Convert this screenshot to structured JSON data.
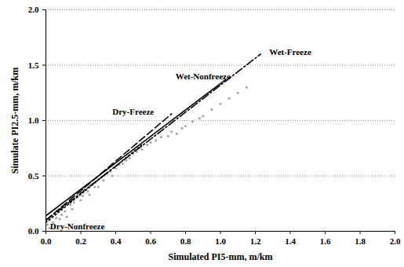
{
  "chart_data": {
    "type": "scatter",
    "x_label": "Simulated PI5-mm, m/km",
    "y_label": "Simulate PI2.5-mm, m/km",
    "xlim": [
      0,
      2
    ],
    "ylim": [
      0,
      2
    ],
    "xticks": [
      {
        "value": 0,
        "label": "0.0"
      },
      {
        "value": 0.2,
        "label": "0.2"
      },
      {
        "value": 0.4,
        "label": "0.4"
      },
      {
        "value": 0.6,
        "label": "0.6"
      },
      {
        "value": 0.8,
        "label": "0.8"
      },
      {
        "value": 1,
        "label": "1.0"
      },
      {
        "value": 1.2,
        "label": "1.2"
      },
      {
        "value": 1.4,
        "label": "1.4"
      },
      {
        "value": 1.6,
        "label": "1.6"
      },
      {
        "value": 1.8,
        "label": "1.8"
      },
      {
        "value": 2,
        "label": "2.0"
      }
    ],
    "yticks": [
      {
        "value": 0,
        "label": "0.0"
      },
      {
        "value": 0.5,
        "label": "0.5"
      },
      {
        "value": 1,
        "label": "1.0"
      },
      {
        "value": 1.5,
        "label": "1.5"
      },
      {
        "value": 2,
        "label": "2.0"
      }
    ],
    "grid": "y",
    "scatter": {
      "color": "#a8a8a8",
      "marker": "circle",
      "x": [
        0.01,
        0.02,
        0.03,
        0.04,
        0.05,
        0.06,
        0.08,
        0.09,
        0.1,
        0.11,
        0.12,
        0.14,
        0.15,
        0.16,
        0.18,
        0.2,
        0.21,
        0.22,
        0.24,
        0.25,
        0.27,
        0.28,
        0.3,
        0.32,
        0.33,
        0.35,
        0.37,
        0.38,
        0.4,
        0.42,
        0.44,
        0.46,
        0.48,
        0.5,
        0.52,
        0.55,
        0.58,
        0.6,
        0.63,
        0.66,
        0.7,
        0.72,
        0.75,
        0.78,
        0.8,
        0.84,
        0.88,
        0.9,
        0.95,
        1.0,
        1.05,
        1.1,
        1.15,
        0.02,
        0.05,
        0.08,
        0.12,
        0.15,
        0.2,
        0.25,
        0.3
      ],
      "values": [
        0.06,
        0.1,
        0.14,
        0.08,
        0.16,
        0.12,
        0.2,
        0.15,
        0.22,
        0.18,
        0.25,
        0.24,
        0.3,
        0.26,
        0.31,
        0.35,
        0.32,
        0.38,
        0.36,
        0.41,
        0.43,
        0.4,
        0.47,
        0.49,
        0.46,
        0.52,
        0.54,
        0.5,
        0.57,
        0.6,
        0.61,
        0.64,
        0.66,
        0.7,
        0.72,
        0.74,
        0.78,
        0.8,
        0.82,
        0.85,
        0.86,
        0.9,
        0.88,
        0.93,
        0.95,
        0.99,
        1.02,
        1.04,
        1.1,
        1.15,
        1.2,
        1.25,
        1.3,
        0.03,
        0.04,
        0.11,
        0.13,
        0.2,
        0.28,
        0.33,
        0.4
      ]
    },
    "series": [
      {
        "name": "Dry-Nonfreeze",
        "type": "line",
        "color": "#000000",
        "line_style": "dotted",
        "x": [
          0,
          0.55
        ],
        "values": [
          0.08,
          0.78
        ]
      },
      {
        "name": "Dry-Freeze",
        "type": "line",
        "color": "#000000",
        "line_style": "dashed",
        "x": [
          0,
          0.72
        ],
        "values": [
          0.1,
          1.06
        ]
      },
      {
        "name": "Wet-Nonfreeze",
        "type": "line",
        "color": "#000000",
        "line_style": "solid",
        "x": [
          0,
          1.03
        ],
        "values": [
          0.14,
          1.37
        ]
      },
      {
        "name": "Wet-Freeze",
        "type": "line",
        "color": "#000000",
        "line_style": "dashdot",
        "x": [
          0,
          1.23
        ],
        "values": [
          0.1,
          1.6
        ]
      }
    ],
    "annotations": [
      {
        "text": "Dry-Nonfreeze",
        "x": 0.18,
        "y": 0.04
      },
      {
        "text": "Dry-Freeze",
        "x": 0.5,
        "y": 1.08
      },
      {
        "text": "Wet-Nonfreeze",
        "x": 0.9,
        "y": 1.4
      },
      {
        "text": "Wet-Freeze",
        "x": 1.4,
        "y": 1.62
      }
    ]
  }
}
